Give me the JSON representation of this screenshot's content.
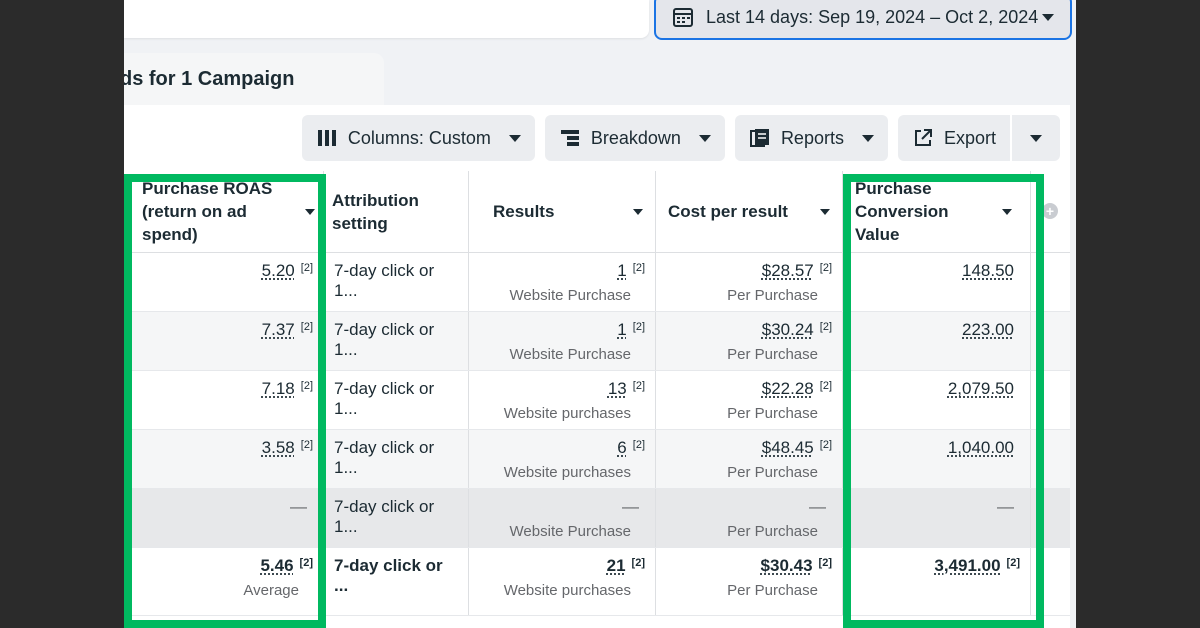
{
  "date_picker": {
    "label": "Last 14 days: Sep 19, 2024 – Oct 2, 2024",
    "icon": "calendar-icon"
  },
  "tab": {
    "label": "ds for 1 Campaign"
  },
  "toolbar": {
    "columns_label": "Columns: Custom",
    "breakdown_label": "Breakdown",
    "reports_label": "Reports",
    "export_label": "Export"
  },
  "headers": {
    "roas": "Purchase ROAS (return on ad spend)",
    "attribution": "Attribution setting",
    "results": "Results",
    "cpr": "Cost per result",
    "pcv": "Purchase Conversion Value"
  },
  "rows": [
    {
      "roas": "5.20",
      "roas_fn": "[2]",
      "attribution": "7-day click or 1...",
      "results": "1",
      "results_fn": "[2]",
      "results_sub": "Website Purchase",
      "cpr": "$28.57",
      "cpr_fn": "[2]",
      "cpr_sub": "Per Purchase",
      "pcv": "148.50"
    },
    {
      "roas": "7.37",
      "roas_fn": "[2]",
      "attribution": "7-day click or 1...",
      "results": "1",
      "results_fn": "[2]",
      "results_sub": "Website Purchase",
      "cpr": "$30.24",
      "cpr_fn": "[2]",
      "cpr_sub": "Per Purchase",
      "pcv": "223.00"
    },
    {
      "roas": "7.18",
      "roas_fn": "[2]",
      "attribution": "7-day click or 1...",
      "results": "13",
      "results_fn": "[2]",
      "results_sub": "Website purchases",
      "cpr": "$22.28",
      "cpr_fn": "[2]",
      "cpr_sub": "Per Purchase",
      "pcv": "2,079.50"
    },
    {
      "roas": "3.58",
      "roas_fn": "[2]",
      "attribution": "7-day click or 1...",
      "results": "6",
      "results_fn": "[2]",
      "results_sub": "Website purchases",
      "cpr": "$48.45",
      "cpr_fn": "[2]",
      "cpr_sub": "Per Purchase",
      "pcv": "1,040.00"
    },
    {
      "roas": "—",
      "attribution": "7-day click or 1...",
      "results": "—",
      "results_sub": "Website Purchase",
      "cpr": "—",
      "cpr_sub": "Per Purchase",
      "pcv": "—"
    }
  ],
  "total": {
    "roas": "5.46",
    "roas_fn": "[2]",
    "roas_sub": "Average",
    "attribution": "7-day click or ...",
    "results": "21",
    "results_fn": "[2]",
    "results_sub": "Website purchases",
    "cpr": "$30.43",
    "cpr_fn": "[2]",
    "cpr_sub": "Per Purchase",
    "pcv": "3,491.00",
    "pcv_fn": "[2]"
  },
  "colors": {
    "highlight": "#00b960",
    "accent": "#1b74e4"
  }
}
